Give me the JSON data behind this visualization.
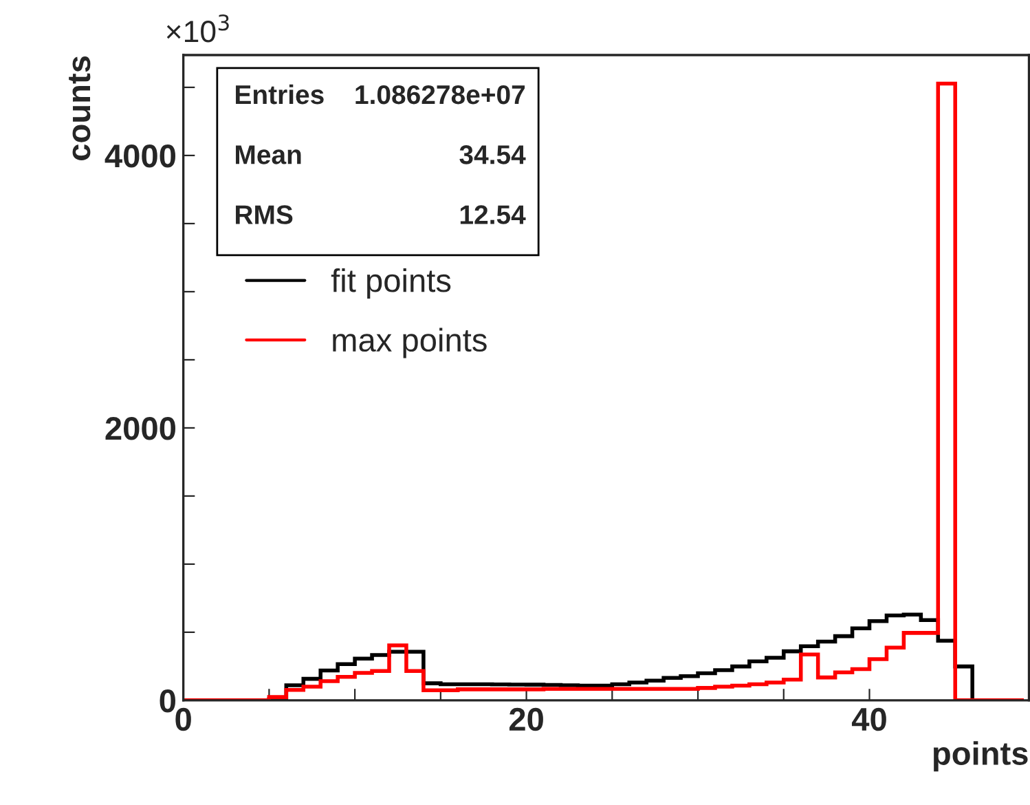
{
  "chart_data": {
    "type": "histogram",
    "xlabel": "points",
    "ylabel": "counts",
    "bins": [
      0,
      1,
      2,
      3,
      4,
      5,
      6,
      7,
      8,
      9,
      10,
      11,
      12,
      13,
      14,
      15,
      16,
      17,
      18,
      19,
      20,
      21,
      22,
      23,
      24,
      25,
      26,
      27,
      28,
      29,
      30,
      31,
      32,
      33,
      34,
      35,
      36,
      37,
      38,
      39,
      40,
      41,
      42,
      43,
      44,
      45,
      46,
      47,
      48,
      49
    ],
    "series": [
      {
        "name": "fit points",
        "color": "#000000",
        "values": [
          0,
          0,
          0,
          0,
          0,
          10,
          111,
          158,
          219,
          266,
          306,
          333,
          357,
          357,
          125,
          118,
          118,
          118,
          117,
          116,
          115,
          113,
          111,
          108,
          108,
          118,
          131,
          145,
          165,
          178,
          199,
          222,
          249,
          286,
          313,
          360,
          397,
          431,
          471,
          529,
          582,
          623,
          630,
          589,
          438,
          249,
          0,
          0,
          0
        ]
      },
      {
        "name": "max points",
        "color": "#ff0000",
        "values": [
          0,
          0,
          0,
          0,
          0,
          24,
          77,
          101,
          141,
          172,
          202,
          215,
          404,
          215,
          74,
          74,
          81,
          81,
          81,
          81,
          81,
          84,
          84,
          84,
          84,
          84,
          84,
          84,
          84,
          84,
          91,
          101,
          108,
          118,
          131,
          152,
          337,
          168,
          205,
          229,
          303,
          387,
          495,
          495,
          4528,
          0,
          0,
          0,
          0
        ]
      }
    ],
    "xlim": [
      0,
      49.3
    ],
    "ylim": [
      0,
      4737
    ],
    "xticks": [
      0,
      {
        "value": 5,
        "label": null
      },
      {
        "value": 10,
        "label": null
      },
      {
        "value": 15,
        "label": null
      },
      20,
      {
        "value": 25,
        "label": null
      },
      {
        "value": 30,
        "label": null
      },
      {
        "value": 35,
        "label": null
      },
      40,
      {
        "value": 45,
        "label": null
      }
    ],
    "yticks": [
      0,
      {
        "value": 500,
        "label": null
      },
      {
        "value": 1000,
        "label": null
      },
      {
        "value": 1500,
        "label": null
      },
      2000,
      {
        "value": 2500,
        "label": null
      },
      {
        "value": 3000,
        "label": null
      },
      {
        "value": 3500,
        "label": null
      },
      4000,
      {
        "value": 4500,
        "label": null
      }
    ],
    "legend": "left",
    "annotations": [
      "×10$^{3}$",
      "Entries",
      "1.086278e+07",
      "Mean",
      "34.54",
      "RMS",
      "12.54"
    ]
  }
}
